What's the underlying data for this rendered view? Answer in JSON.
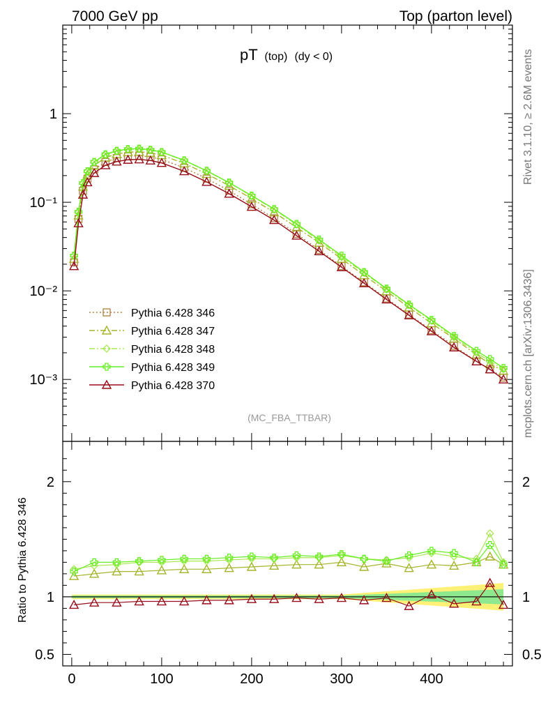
{
  "header": {
    "left": "7000 GeV pp",
    "right": "Top (parton level)"
  },
  "side_texts": {
    "rivet": "Rivet 3.1.10, ≥ 2.6M events",
    "mcplots": "mcplots.cern.ch [arXiv:1306.3436]"
  },
  "chart_data": [
    {
      "panel": "main",
      "type": "line",
      "title_main": "pT",
      "title_sub": "(top)",
      "title_cond": "(dy < 0)",
      "analysis_label": "(MC_FBA_TTBAR)",
      "yscale": "log",
      "xlim": [
        -10,
        490
      ],
      "ylim": [
        0.0002,
        10
      ],
      "y_ticks": [
        {
          "value": 1,
          "label": "1"
        },
        {
          "value": 0.1,
          "label": "10⁻¹"
        },
        {
          "value": 0.01,
          "label": "10⁻²"
        },
        {
          "value": 0.001,
          "label": "10⁻³"
        }
      ],
      "legend_position": "bottom-left",
      "series": [
        {
          "name": "Pythia 6.428 346",
          "color": "#b08040",
          "marker": "square",
          "line": "dotted",
          "x": [
            2.5,
            7.5,
            12.5,
            17.5,
            25,
            37.5,
            50,
            62.5,
            75,
            87.5,
            100,
            125,
            150,
            175,
            200,
            225,
            250,
            275,
            300,
            325,
            350,
            375,
            400,
            425,
            450,
            465,
            480
          ],
          "y": [
            0.021,
            0.065,
            0.135,
            0.185,
            0.235,
            0.285,
            0.315,
            0.33,
            0.335,
            0.325,
            0.305,
            0.245,
            0.185,
            0.135,
            0.095,
            0.066,
            0.044,
            0.029,
            0.019,
            0.0125,
            0.0082,
            0.0054,
            0.0036,
            0.0024,
            0.0016,
            0.0013,
            0.00105
          ]
        },
        {
          "name": "Pythia 6.428 347",
          "color": "#a5b42a",
          "marker": "triangle",
          "line": "dashdot",
          "x": [
            2.5,
            7.5,
            12.5,
            17.5,
            25,
            37.5,
            50,
            62.5,
            75,
            87.5,
            100,
            125,
            150,
            175,
            200,
            225,
            250,
            275,
            300,
            325,
            350,
            375,
            400,
            425,
            450,
            465,
            480
          ],
          "y": [
            0.023,
            0.071,
            0.15,
            0.205,
            0.26,
            0.32,
            0.35,
            0.368,
            0.372,
            0.362,
            0.34,
            0.275,
            0.209,
            0.154,
            0.11,
            0.077,
            0.052,
            0.035,
            0.023,
            0.015,
            0.0099,
            0.0065,
            0.0043,
            0.0029,
            0.0019,
            0.0015,
            0.00125
          ]
        },
        {
          "name": "Pythia 6.428 348",
          "color": "#a8e850",
          "marker": "diamond",
          "line": "dashdot",
          "x": [
            2.5,
            7.5,
            12.5,
            17.5,
            25,
            37.5,
            50,
            62.5,
            75,
            87.5,
            100,
            125,
            150,
            175,
            200,
            225,
            250,
            275,
            300,
            325,
            350,
            375,
            400,
            425,
            450,
            465,
            480
          ],
          "y": [
            0.025,
            0.077,
            0.163,
            0.222,
            0.283,
            0.345,
            0.378,
            0.396,
            0.4,
            0.389,
            0.366,
            0.296,
            0.225,
            0.166,
            0.118,
            0.083,
            0.056,
            0.037,
            0.024,
            0.016,
            0.0104,
            0.0069,
            0.0046,
            0.003,
            0.002,
            0.0016,
            0.0013
          ]
        },
        {
          "name": "Pythia 6.428 349",
          "color": "#66ee22",
          "marker": "cross",
          "line": "solid",
          "x": [
            2.5,
            7.5,
            12.5,
            17.5,
            25,
            37.5,
            50,
            62.5,
            75,
            87.5,
            100,
            125,
            150,
            175,
            200,
            225,
            250,
            275,
            300,
            325,
            350,
            375,
            400,
            425,
            450,
            465,
            480
          ],
          "y": [
            0.025,
            0.078,
            0.165,
            0.224,
            0.286,
            0.348,
            0.381,
            0.399,
            0.403,
            0.392,
            0.369,
            0.298,
            0.227,
            0.167,
            0.119,
            0.084,
            0.057,
            0.038,
            0.025,
            0.0163,
            0.0106,
            0.007,
            0.0047,
            0.0031,
            0.0021,
            0.0017,
            0.00135
          ]
        },
        {
          "name": "Pythia 6.428 370",
          "color": "#960c18",
          "marker": "triangle",
          "line": "solid",
          "x": [
            2.5,
            7.5,
            12.5,
            17.5,
            25,
            37.5,
            50,
            62.5,
            75,
            87.5,
            100,
            125,
            150,
            175,
            200,
            225,
            250,
            275,
            300,
            325,
            350,
            375,
            400,
            425,
            450,
            465,
            480
          ],
          "y": [
            0.019,
            0.058,
            0.122,
            0.168,
            0.214,
            0.262,
            0.288,
            0.302,
            0.305,
            0.296,
            0.278,
            0.224,
            0.17,
            0.125,
            0.089,
            0.063,
            0.042,
            0.028,
            0.0185,
            0.0122,
            0.008,
            0.0053,
            0.0035,
            0.0023,
            0.0016,
            0.0013,
            0.001
          ]
        }
      ]
    },
    {
      "panel": "ratio",
      "type": "line",
      "ylabel": "Ratio to Pythia 6.428 346",
      "xlim": [
        -10,
        490
      ],
      "ylim": [
        0.4,
        2.35
      ],
      "x_ticks": [
        0,
        100,
        200,
        300,
        400
      ],
      "y_ticks": [
        {
          "value": 0.5,
          "label": "0.5"
        },
        {
          "value": 1,
          "label": "1"
        },
        {
          "value": 2,
          "label": "2"
        }
      ],
      "band_note": "reference uncertainty bands (green inner, yellow outer) widen above 350",
      "series": [
        {
          "name": "Pythia 6.428 347",
          "color": "#a5b42a",
          "marker": "triangle",
          "x": [
            2.5,
            25,
            50,
            75,
            100,
            125,
            150,
            175,
            200,
            225,
            250,
            275,
            300,
            325,
            350,
            375,
            400,
            425,
            450,
            465,
            480
          ],
          "y": [
            1.18,
            1.2,
            1.22,
            1.22,
            1.23,
            1.24,
            1.24,
            1.25,
            1.26,
            1.27,
            1.28,
            1.28,
            1.3,
            1.26,
            1.29,
            1.25,
            1.28,
            1.27,
            1.3,
            1.35,
            1.28
          ]
        },
        {
          "name": "Pythia 6.428 348",
          "color": "#a8e850",
          "marker": "diamond",
          "x": [
            2.5,
            25,
            50,
            75,
            100,
            125,
            150,
            175,
            200,
            225,
            250,
            275,
            300,
            325,
            350,
            375,
            400,
            425,
            450,
            465,
            480
          ],
          "y": [
            1.24,
            1.27,
            1.28,
            1.3,
            1.3,
            1.31,
            1.31,
            1.32,
            1.33,
            1.33,
            1.34,
            1.34,
            1.36,
            1.33,
            1.32,
            1.34,
            1.38,
            1.35,
            1.33,
            1.55,
            1.3
          ]
        },
        {
          "name": "Pythia 6.428 349",
          "color": "#66ee22",
          "marker": "cross",
          "x": [
            2.5,
            25,
            50,
            75,
            100,
            125,
            150,
            175,
            200,
            225,
            250,
            275,
            300,
            325,
            350,
            375,
            400,
            425,
            450,
            465,
            480
          ],
          "y": [
            1.22,
            1.3,
            1.3,
            1.31,
            1.32,
            1.33,
            1.33,
            1.34,
            1.35,
            1.34,
            1.36,
            1.35,
            1.37,
            1.33,
            1.31,
            1.36,
            1.4,
            1.38,
            1.3,
            1.45,
            1.28
          ]
        },
        {
          "name": "Pythia 6.428 370",
          "color": "#960c18",
          "marker": "triangle",
          "x": [
            2.5,
            25,
            50,
            75,
            100,
            125,
            150,
            175,
            200,
            225,
            250,
            275,
            300,
            325,
            350,
            375,
            400,
            425,
            450,
            465,
            480
          ],
          "y": [
            0.93,
            0.95,
            0.95,
            0.96,
            0.96,
            0.96,
            0.97,
            0.97,
            0.98,
            0.98,
            0.99,
            0.98,
            0.99,
            0.97,
            0.99,
            0.92,
            1.02,
            0.94,
            0.96,
            1.12,
            0.93
          ]
        }
      ]
    }
  ]
}
